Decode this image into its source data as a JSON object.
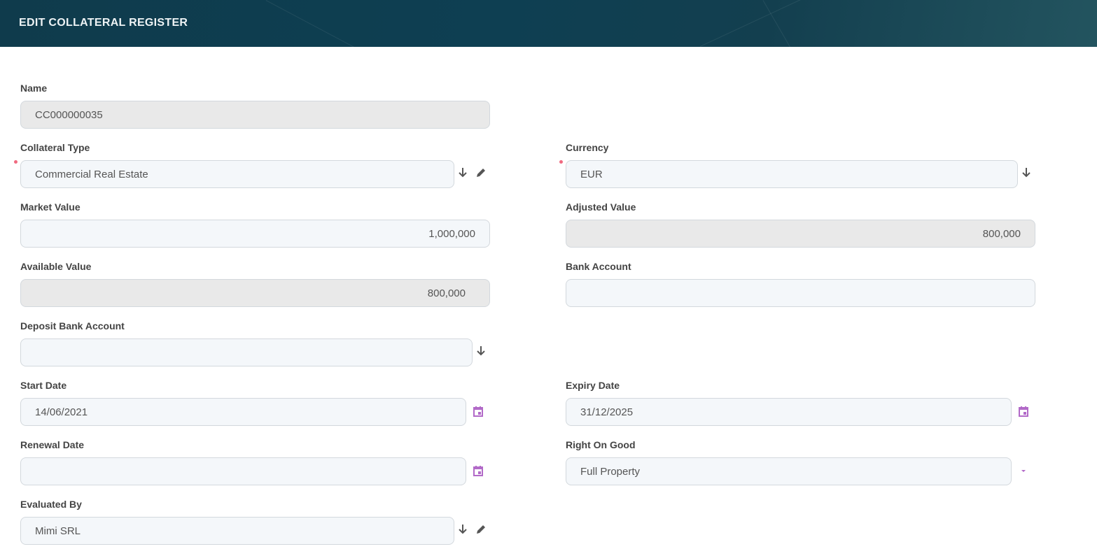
{
  "header": {
    "title": "EDIT COLLATERAL REGISTER"
  },
  "colors": {
    "header_bg": "#0f3f50",
    "required": "#f06a80",
    "calendar": "#b26ac8",
    "icon": "#555555",
    "readonly_bg": "#e9e9e9",
    "input_bg": "#f4f7fa"
  },
  "fields": {
    "name": {
      "label": "Name",
      "value": "CC000000035"
    },
    "collateral_type": {
      "label": "Collateral Type",
      "value": "Commercial Real Estate",
      "required": true
    },
    "currency": {
      "label": "Currency",
      "value": "EUR",
      "required": true
    },
    "market_value": {
      "label": "Market Value",
      "value": "1,000,000"
    },
    "adjusted_value": {
      "label": "Adjusted Value",
      "value": "800,000"
    },
    "available_value": {
      "label": "Available Value",
      "value": "800,000"
    },
    "bank_account": {
      "label": "Bank Account",
      "value": ""
    },
    "deposit_bank_account": {
      "label": "Deposit Bank Account",
      "value": ""
    },
    "start_date": {
      "label": "Start Date",
      "value": "14/06/2021"
    },
    "expiry_date": {
      "label": "Expiry Date",
      "value": "31/12/2025"
    },
    "renewal_date": {
      "label": "Renewal Date",
      "value": ""
    },
    "right_on_good": {
      "label": "Right On Good",
      "value": "Full Property"
    },
    "evaluated_by": {
      "label": "Evaluated By",
      "value": "Mimi SRL"
    }
  },
  "icons": {
    "lookup": "arrow-down-icon",
    "edit": "pencil-icon",
    "date": "calendar-icon",
    "select": "caret-down-icon"
  }
}
